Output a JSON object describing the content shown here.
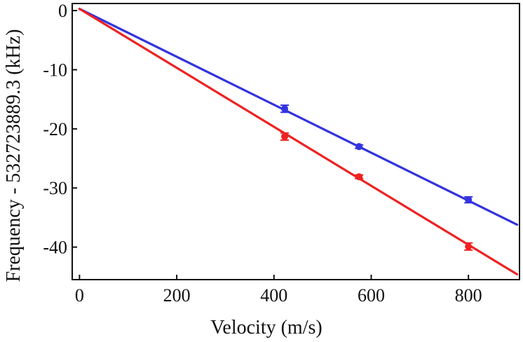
{
  "chart_data": {
    "type": "scatter",
    "title": "",
    "xlabel": "Velocity (m/s)",
    "ylabel": "Frequency - 532723889.3 (kHz)",
    "xlim": [
      -15,
      905
    ],
    "ylim": [
      -45.5,
      1.2
    ],
    "x_ticks": [
      0,
      200,
      400,
      600,
      800
    ],
    "x_tick_labels": [
      "0",
      "200",
      "400",
      "600",
      "800"
    ],
    "y_ticks": [
      0,
      -10,
      -20,
      -30,
      -40
    ],
    "y_tick_labels": [
      "0",
      "-10",
      "-20",
      "-30",
      "-40"
    ],
    "grid": false,
    "legend": "none",
    "series": [
      {
        "name": "blue",
        "color": "#3333e0",
        "points": [
          {
            "x": 422,
            "y": -16.6,
            "err": 0.6
          },
          {
            "x": 575,
            "y": -23.0,
            "err": 0.3
          },
          {
            "x": 800,
            "y": -32.0,
            "err": 0.5
          }
        ],
        "fit_line": {
          "x": [
            0,
            900
          ],
          "y": [
            0.3,
            -36.2
          ]
        }
      },
      {
        "name": "red",
        "color": "#ee2222",
        "points": [
          {
            "x": 422,
            "y": -21.3,
            "err": 0.6
          },
          {
            "x": 575,
            "y": -28.1,
            "err": 0.3
          },
          {
            "x": 800,
            "y": -39.9,
            "err": 0.6
          }
        ],
        "fit_line": {
          "x": [
            0,
            900
          ],
          "y": [
            0.3,
            -44.6
          ]
        }
      }
    ]
  }
}
